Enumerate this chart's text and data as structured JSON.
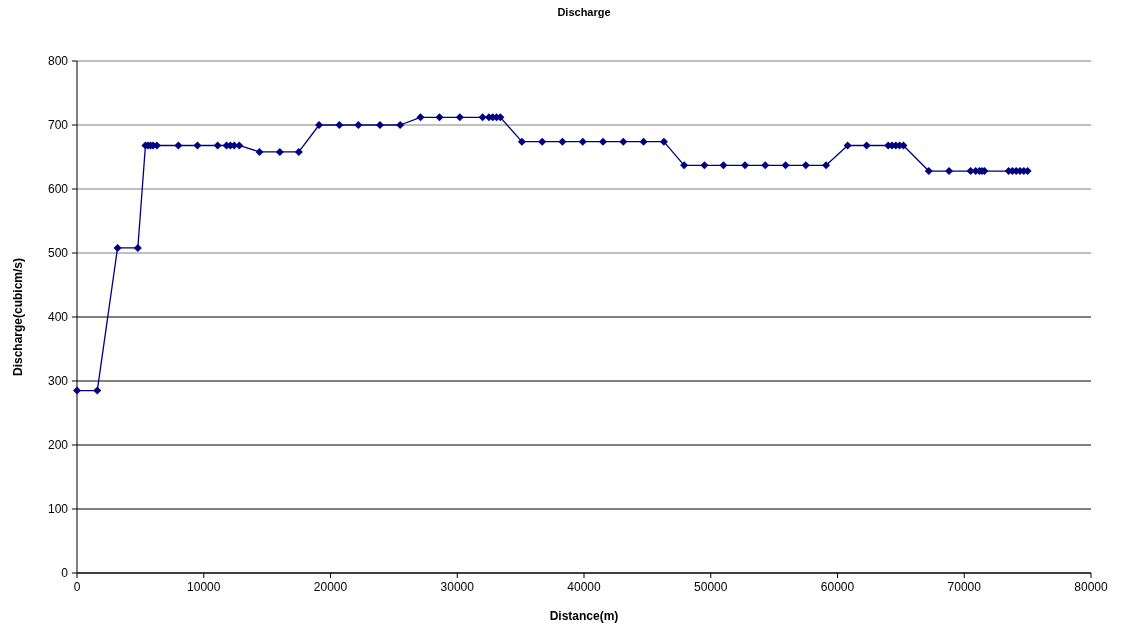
{
  "chart_data": {
    "type": "line",
    "title": "Discharge",
    "xlabel": "Distance(m)",
    "ylabel": "Discharge(cubicm/s)",
    "xlim": [
      0,
      80000
    ],
    "xticks": [
      0,
      10000,
      20000,
      30000,
      40000,
      50000,
      60000,
      70000,
      80000
    ],
    "ylim": [
      0,
      800
    ],
    "yticks": [
      0,
      100,
      200,
      300,
      400,
      500,
      600,
      700,
      800
    ],
    "grid": "y",
    "marker": "diamond",
    "x": [
      0,
      1600,
      3200,
      4800,
      5400,
      5600,
      5800,
      6000,
      6300,
      8000,
      9500,
      11100,
      11800,
      12100,
      12400,
      12800,
      14400,
      16000,
      17500,
      19100,
      20700,
      22200,
      23900,
      25500,
      27100,
      28600,
      30200,
      32000,
      32500,
      32800,
      33100,
      33400,
      35100,
      36700,
      38300,
      39900,
      41500,
      43100,
      44700,
      46300,
      47900,
      49500,
      51000,
      52700,
      54300,
      55900,
      57500,
      59100,
      60800,
      62300,
      64000,
      64300,
      64600,
      64900,
      65200,
      67200,
      68800,
      70500,
      70900,
      71200,
      71400,
      71600,
      73500,
      73800,
      74100,
      74400,
      74700,
      75000
    ],
    "series": [
      {
        "color": "#000080",
        "values": [
          285,
          285,
          508,
          508,
          668,
          668,
          668,
          668,
          668,
          668,
          668,
          668,
          668,
          668,
          668,
          668,
          658,
          658,
          658,
          700,
          700,
          700,
          700,
          700,
          712,
          712,
          712,
          712,
          712,
          712,
          712,
          712,
          674,
          674,
          674,
          674,
          674,
          674,
          674,
          674,
          637,
          637,
          637,
          637,
          637,
          637,
          637,
          637,
          668,
          668,
          668,
          668,
          668,
          668,
          668,
          628,
          628,
          628,
          628,
          628,
          628,
          628,
          628,
          628,
          628,
          628,
          628,
          628
        ]
      }
    ]
  }
}
